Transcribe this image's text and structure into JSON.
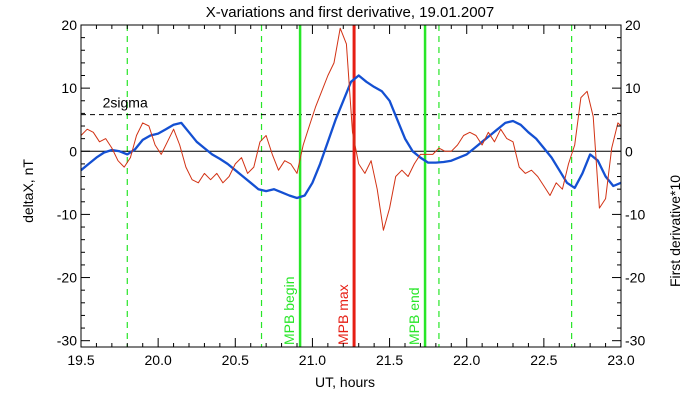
{
  "chart_data": {
    "type": "line",
    "title": "X-variations and first derivative, 19.01.2007",
    "xlabel": "UT, hours",
    "ylabel_left": "deltaX, nT",
    "ylabel_right": "First derivative*10",
    "xlim": [
      19.5,
      23.0
    ],
    "ylim": [
      -31,
      20
    ],
    "x_ticks": [
      19.5,
      20.0,
      20.5,
      21.0,
      21.5,
      22.0,
      22.5,
      23.0
    ],
    "x_tick_labels": [
      "19.5",
      "20.0",
      "20.5",
      "21.0",
      "21.5",
      "22.0",
      "22.5",
      "23.0"
    ],
    "y_ticks": [
      -30,
      -20,
      -10,
      0,
      10,
      20
    ],
    "y_tick_labels": [
      "-30",
      "-20",
      "-10",
      "0",
      "10",
      "20"
    ],
    "colors": {
      "deltaX": "#1450d2",
      "derivative": "#d23214",
      "mpb_begin_end": "#28e628",
      "mpb_max": "#e61e14",
      "dashed_green": "#28e628"
    },
    "reference_lines": {
      "zero": 0,
      "two_sigma": {
        "value": 5.8,
        "label": "2sigma"
      }
    },
    "dashed_verticals": [
      19.8,
      20.67,
      21.82,
      22.68
    ],
    "markers": [
      {
        "x": 20.92,
        "label": "MPB begin",
        "color": "#28e628"
      },
      {
        "x": 21.27,
        "label": "MPB max",
        "color": "#e61e14"
      },
      {
        "x": 21.73,
        "label": "MPB end",
        "color": "#28e628"
      }
    ],
    "series": [
      {
        "name": "deltaX, nT",
        "axis": "left",
        "color": "#1450d2",
        "x": [
          19.5,
          19.55,
          19.6,
          19.65,
          19.7,
          19.75,
          19.8,
          19.85,
          19.9,
          19.95,
          20.0,
          20.05,
          20.1,
          20.15,
          20.2,
          20.25,
          20.3,
          20.35,
          20.4,
          20.45,
          20.5,
          20.55,
          20.6,
          20.65,
          20.7,
          20.75,
          20.8,
          20.85,
          20.9,
          20.95,
          21.0,
          21.05,
          21.1,
          21.15,
          21.2,
          21.25,
          21.3,
          21.35,
          21.4,
          21.45,
          21.5,
          21.55,
          21.6,
          21.65,
          21.7,
          21.75,
          21.8,
          21.85,
          21.9,
          21.95,
          22.0,
          22.05,
          22.1,
          22.15,
          22.2,
          22.25,
          22.3,
          22.35,
          22.4,
          22.45,
          22.5,
          22.55,
          22.6,
          22.65,
          22.7,
          22.75,
          22.8,
          22.85,
          22.9,
          22.95,
          23.0
        ],
        "values": [
          -3.0,
          -2.0,
          -1.0,
          -0.2,
          0.2,
          0.0,
          -0.5,
          0.3,
          1.8,
          2.5,
          2.8,
          3.5,
          4.2,
          4.5,
          3.0,
          1.5,
          0.5,
          -0.5,
          -1.2,
          -2.0,
          -3.0,
          -4.0,
          -5.0,
          -6.0,
          -6.3,
          -6.0,
          -6.5,
          -7.0,
          -7.4,
          -7.0,
          -5.0,
          -2.0,
          1.5,
          5.0,
          8.0,
          11.0,
          12.0,
          11.0,
          10.2,
          9.5,
          8.0,
          5.0,
          2.0,
          0.0,
          -1.0,
          -1.8,
          -1.8,
          -1.7,
          -1.5,
          -1.0,
          -0.5,
          0.5,
          1.5,
          2.5,
          3.5,
          4.5,
          4.8,
          4.2,
          3.0,
          2.0,
          0.5,
          -1.0,
          -3.0,
          -5.0,
          -5.8,
          -3.5,
          -0.5,
          -1.5,
          -4.0,
          -5.5,
          -5.0
        ]
      },
      {
        "name": "First derivative*10",
        "axis": "right",
        "color": "#d23214",
        "x": [
          19.5,
          19.54,
          19.58,
          19.62,
          19.66,
          19.7,
          19.74,
          19.78,
          19.82,
          19.86,
          19.9,
          19.94,
          19.98,
          20.02,
          20.06,
          20.1,
          20.14,
          20.18,
          20.22,
          20.26,
          20.3,
          20.34,
          20.38,
          20.42,
          20.46,
          20.5,
          20.54,
          20.58,
          20.62,
          20.66,
          20.7,
          20.74,
          20.78,
          20.82,
          20.86,
          20.9,
          20.94,
          20.98,
          21.02,
          21.06,
          21.1,
          21.14,
          21.18,
          21.22,
          21.26,
          21.3,
          21.34,
          21.38,
          21.42,
          21.46,
          21.5,
          21.54,
          21.58,
          21.62,
          21.66,
          21.7,
          21.74,
          21.78,
          21.82,
          21.86,
          21.9,
          21.94,
          21.98,
          22.02,
          22.06,
          22.1,
          22.14,
          22.18,
          22.22,
          22.26,
          22.3,
          22.34,
          22.38,
          22.42,
          22.46,
          22.5,
          22.54,
          22.58,
          22.62,
          22.66,
          22.7,
          22.74,
          22.78,
          22.82,
          22.86,
          22.9,
          22.94,
          22.98,
          23.0
        ],
        "values": [
          2.5,
          3.5,
          3.0,
          1.5,
          2.0,
          0.5,
          -1.5,
          -2.5,
          -1.0,
          2.5,
          4.5,
          4.0,
          1.0,
          -0.5,
          1.5,
          3.5,
          1.0,
          -2.5,
          -4.5,
          -5.0,
          -3.5,
          -4.5,
          -3.5,
          -5.0,
          -4.0,
          -2.0,
          -1.0,
          -3.5,
          -2.5,
          1.5,
          2.5,
          -0.5,
          -3.0,
          -1.5,
          -2.0,
          -3.5,
          1.0,
          4.0,
          7.0,
          9.5,
          12.0,
          14.0,
          19.5,
          17.0,
          3.0,
          -2.0,
          -3.5,
          -1.5,
          -6.0,
          -12.5,
          -9.0,
          -4.0,
          -3.0,
          -4.0,
          -2.0,
          -0.5,
          -0.5,
          -0.5,
          0.5,
          0.0,
          0.0,
          1.0,
          2.5,
          3.0,
          2.5,
          1.0,
          3.0,
          1.5,
          3.5,
          2.0,
          1.5,
          -2.5,
          -3.5,
          -3.0,
          -4.0,
          -5.5,
          -7.0,
          -5.0,
          -6.0,
          -2.0,
          1.0,
          8.5,
          9.5,
          5.5,
          -9.0,
          -7.5,
          0.5,
          4.5,
          4.0
        ]
      }
    ]
  }
}
